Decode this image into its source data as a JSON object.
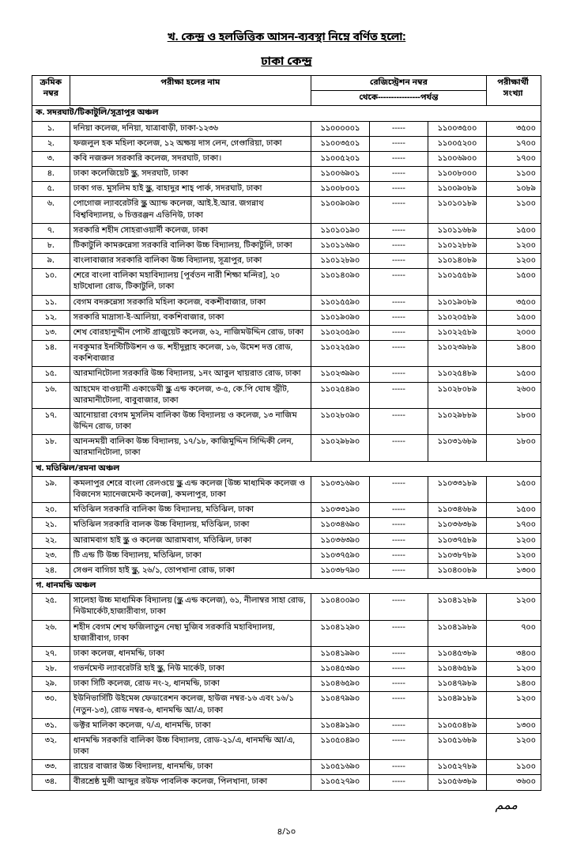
{
  "titles": {
    "main": "খ. কেন্দ্র ও হলভিত্তিক আসন-ব্যবস্থা নিম্নে বর্ণিত হলো:",
    "center": "ঢাকা কেন্দ্র"
  },
  "header": {
    "sn1": "ক্রমিক",
    "sn2": "নম্বর",
    "hall": "পরীক্ষা হলের নাম",
    "reg": "রেজিস্ট্রেশন নম্বর",
    "range": "থেকে----------------পর্যন্ত",
    "count1": "পরীক্ষার্থী",
    "count2": "সংখ্যা"
  },
  "sections": [
    {
      "title": "ক. সদরঘাট/টিকাটুলি/সূত্রাপুর অঞ্চল",
      "rows": [
        {
          "sn": "১.",
          "name": "দনিয়া কলেজ, দনিয়া, যাত্রাবাড়ী, ঢাকা-১২৩৬",
          "from": "১১০০০০০১",
          "to": "১১০০৩৫০০",
          "cnt": "৩৫০০"
        },
        {
          "sn": "২.",
          "name": "ফজলুল হক মহিলা কলেজ, ১২ অক্ষয় দাস লেন, গেণ্ডারিয়া, ঢাকা",
          "from": "১১০০৩৫০১",
          "to": "১১০০৫২০০",
          "cnt": "১৭০০"
        },
        {
          "sn": "৩.",
          "name": "কবি নজরুল সরকারি কলেজ, সদরঘাট, ঢাকা।",
          "from": "১১০০৫২০১",
          "to": "১১০০৬৯০০",
          "cnt": "১৭০০"
        },
        {
          "sn": "৪.",
          "name": "ঢাকা কলেজিয়েট স্কুল, সদরঘাট, ঢাকা",
          "from": "১১০০৬৯০১",
          "to": "১১০০৮০০০",
          "cnt": "১১০০"
        },
        {
          "sn": "৫.",
          "name": "ঢাকা গভ. মুসলিম হাই স্কুল, বাহাদুর শাহ্ পার্ক, সদরঘাট, ঢাকা",
          "from": "১১০০৮০০১",
          "to": "১১০০৯০৮৯",
          "cnt": "১০৮৯"
        },
        {
          "sn": "৬.",
          "name": "পোগোজ ল্যাবরেটরি স্কুল অ্যান্ড কলেজ, আই.ই.আর. জগন্নাথ বিশ্ববিদ্যালয়, ৬ চিত্তরঞ্জন এভিনিউ, ঢাকা",
          "from": "১১০০৯০৯০",
          "to": "১১০১০১৮৯",
          "cnt": "১১০০"
        },
        {
          "sn": "৭.",
          "name": "সরকারি শহীদ সোহরাওয়ার্দী কলেজ, ঢাকা",
          "from": "১১০১০১৯০",
          "to": "১১০১১৬৮৯",
          "cnt": "১৫০০"
        },
        {
          "sn": "৮.",
          "name": "টিকাটুলি কামরুন্নেসা সরকারি বালিকা উচ্চ বিদ্যালয়, টিকাটুলি, ঢাকা",
          "from": "১১০১১৬৯০",
          "to": "১১০১২৮৮৯",
          "cnt": "১২০০"
        },
        {
          "sn": "৯.",
          "name": "বাংলাবাজার সরকারি বালিকা উচ্চ বিদ্যালয়, সূত্রাপুর, ঢাকা",
          "from": "১১০১২৮৯০",
          "to": "১১০১৪০৮৯",
          "cnt": "১২০০"
        },
        {
          "sn": "১০.",
          "name": "শেরে বাংলা বালিকা মহাবিদ্যালয় [পূর্বতন নারী শিক্ষা মন্দির], ২০ হাটখোলা রোড, টিকাটুলি, ঢাকা",
          "from": "১১০১৪০৯০",
          "to": "১১০১৫৫৮৯",
          "cnt": "১৫০০"
        },
        {
          "sn": "১১.",
          "name": "বেগম বদরুন্নেসা সরকারি মহিলা কলেজ, বকশীবাজার, ঢাকা",
          "from": "১১০১৫৫৯০",
          "to": "১১০১৯০৮৯",
          "cnt": "৩৫০০"
        },
        {
          "sn": "১২.",
          "name": "সরকারি মাদ্রাসা-ই-আলিয়া, বকশিবাজার, ঢাকা",
          "from": "১১০১৯০৯০",
          "to": "১১০২০৫৮৯",
          "cnt": "১৫০০"
        },
        {
          "sn": "১৩.",
          "name": "শেখ বোরহানুদ্দীন পোস্ট গ্রাজুয়েট কলেজ, ৬২, নাজিমউদ্দিন রোড, ঢাকা",
          "from": "১১০২০৫৯০",
          "to": "১১০২২৫৮৯",
          "cnt": "২০০০"
        },
        {
          "sn": "১৪.",
          "name": "নবকুমার ইনস্টিটিউশন ও ড. শহীদুল্লাহ কলেজ, ১৬, উমেশ দত্ত রোড, বকশিবাজার",
          "from": "১১০২২৫৯০",
          "to": "১১০২৩৯৮৯",
          "cnt": "১৪০০"
        },
        {
          "sn": "১৫.",
          "name": "আরমানিটোলা সরকারি উচ্চ বিদ্যালয়, ১নং আবুল খায়রাত রোড, ঢাকা",
          "from": "১১০২৩৯৯০",
          "to": "১১০২৫৪৮৯",
          "cnt": "১৫০০"
        },
        {
          "sn": "১৬.",
          "name": "আহমেদ বাওয়ানী একাডেমী স্কুল এন্ড কলেজ, ৩-৫, কে.পি ঘোষ স্ট্রীট, আরমানীটোলা, বাবুবাজার, ঢাকা",
          "from": "১১০২৫৪৯০",
          "to": "১১০২৮০৮৯",
          "cnt": "২৬০০"
        },
        {
          "sn": "১৭.",
          "name": "আনোয়ারা বেগম মুসলিম বালিকা উচ্চ বিদ্যালয় ও কলেজ, ১৩ নাজিম উদ্দিন রোড, ঢাকা",
          "from": "১১০২৮০৯০",
          "to": "১১০২৯৮৮৯",
          "cnt": "১৮০০"
        },
        {
          "sn": "১৮.",
          "name": "আনন্দময়ী বালিকা উচ্চ বিদ্যালয়, ১৭/১৮, কাজিমুদ্দিন সিদ্দিকী লেন, আরমানিটোলা, ঢাকা",
          "from": "১১০২৯৮৯০",
          "to": "১১০৩১৬৮৯",
          "cnt": "১৮০০"
        }
      ]
    },
    {
      "title": "খ. মতিঝিল/রমনা অঞ্চল",
      "rows": [
        {
          "sn": "১৯.",
          "name": "কমলাপুর শেরে বাংলা রেলওয়ে স্কুল এন্ড কলেজ [উচ্চ মাধ্যমিক কলেজ ও বিজনেস ম্যানেজমেন্ট কলেজ], কমলাপুর, ঢাকা",
          "from": "১১০৩১৬৯০",
          "to": "১১০৩৩১৮৯",
          "cnt": "১৫০০"
        },
        {
          "sn": "২০.",
          "name": "মতিঝিল সরকারি বালিকা উচ্চ বিদ্যালয়, মতিঝিল, ঢাকা",
          "from": "১১০৩৩১৯০",
          "to": "১১০৩৪৬৮৯",
          "cnt": "১৫০০"
        },
        {
          "sn": "২১.",
          "name": "মতিঝিল সরকারি বালক উচ্চ বিদ্যালয়, মতিঝিল, ঢাকা",
          "from": "১১০৩৪৬৯০",
          "to": "১১০৩৬৩৮৯",
          "cnt": "১৭০০"
        },
        {
          "sn": "২২.",
          "name": "আরামবাগ হাই স্কুল ও কলেজ আরামবাগ, মতিঝিল, ঢাকা",
          "from": "১১০৩৬৩৯০",
          "to": "১১০৩৭৫৮৯",
          "cnt": "১২০০"
        },
        {
          "sn": "২৩.",
          "name": "টি এন্ড টি উচ্চ বিদ্যালয়, মতিঝিল, ঢাকা",
          "from": "১১০৩৭৫৯০",
          "to": "১১০৩৮৭৮৯",
          "cnt": "১২০০"
        },
        {
          "sn": "২৪.",
          "name": "সেগুন বাগিচা হাই স্কুল, ২৬/১, তোপখানা রোড, ঢাকা",
          "from": "১১০৩৮৭৯০",
          "to": "১১০৪০০৮৯",
          "cnt": "১৩০০"
        }
      ]
    },
    {
      "title": "গ. ধানমন্ডি অঞ্চল",
      "rows": [
        {
          "sn": "২৫.",
          "name": "সালেহা উচ্চ মাধ্যমিক বিদ্যালয় (স্কুল এন্ড কলেজ), ৬১, নীলাম্বর সাহা রোড, নিউমার্কেট,হাজারীবাগ, ঢাকা",
          "from": "১১০৪০০৯০",
          "to": "১১০৪১২৮৯",
          "cnt": "১২০০"
        },
        {
          "sn": "২৬.",
          "name": "শহীদ বেগম শেখ ফজিলাতুন নেছা মুজিব সরকারি মহাবিদ্যালয়, হাজারীবাগ, ঢাকা",
          "from": "১১০৪১২৯০",
          "to": "১১০৪১৯৮৯",
          "cnt": "৭০০"
        },
        {
          "sn": "২৭.",
          "name": "ঢাকা কলেজ, ধানমন্ডি, ঢাকা",
          "from": "১১০৪১৯৯০",
          "to": "১১০৪৫৩৮৯",
          "cnt": "৩৪০০"
        },
        {
          "sn": "২৮.",
          "name": "গভর্নমেন্ট ল্যাবরেটরি হাই স্কুল, নিউ মার্কেট, ঢাকা",
          "from": "১১০৪৫৩৯০",
          "to": "১১০৪৬৫৮৯",
          "cnt": "১২০০"
        },
        {
          "sn": "২৯.",
          "name": "ঢাকা সিটি কলেজ, রোড নং-২, ধানমন্ডি, ঢাকা",
          "from": "১১০৪৬৫৯০",
          "to": "১১০৪৭৯৮৯",
          "cnt": "১৪০০"
        },
        {
          "sn": "৩০.",
          "name": "ইউনিভার্সিটি উইমেন্স ফেডারেশন কলেজ, হাউজ নম্বর-১৬ এবং ১৬/১ (নতুন-১৩), রোড নম্বর-৬, ধানমন্ডি আ/এ, ঢাকা",
          "from": "১১০৪৭৯৯০",
          "to": "১১০৪৯১৮৯",
          "cnt": "১২০০"
        },
        {
          "sn": "৩১.",
          "name": "ডক্টর মালিকা কলেজ, ৭/এ, ধানমন্ডি, ঢাকা",
          "from": "১১০৪৯১৯০",
          "to": "১১০৫০৪৮৯",
          "cnt": "১৩০০"
        },
        {
          "sn": "৩২.",
          "name": "ধানমন্ডি সরকারি বালিকা উচ্চ বিদ্যালয়, রোড-২১/এ, ধানমন্ডি আ/এ, ঢাকা",
          "from": "১১০৫০৪৯০",
          "to": "১১০৫১৬৮৯",
          "cnt": "১২০০"
        },
        {
          "sn": "৩৩.",
          "name": "রায়ের বাজার উচ্চ বিদ্যালয়, ধানমন্ডি, ঢাকা",
          "from": "১১০৫১৬৯০",
          "to": "১১০৫২৭৮৯",
          "cnt": "১১০০"
        },
        {
          "sn": "৩৪.",
          "name": "বীরশ্রেষ্ঠ মুন্সী আব্দুর রউফ পাবলিক কলেজ, পিলখানা, ঢাকা",
          "from": "১১০৫২৭৯০",
          "to": "১১০৫৬৩৮৯",
          "cnt": "৩৬০০"
        }
      ]
    }
  ],
  "footer": {
    "page": "৪/১০",
    "sign": "ممم"
  },
  "dash": "-----"
}
